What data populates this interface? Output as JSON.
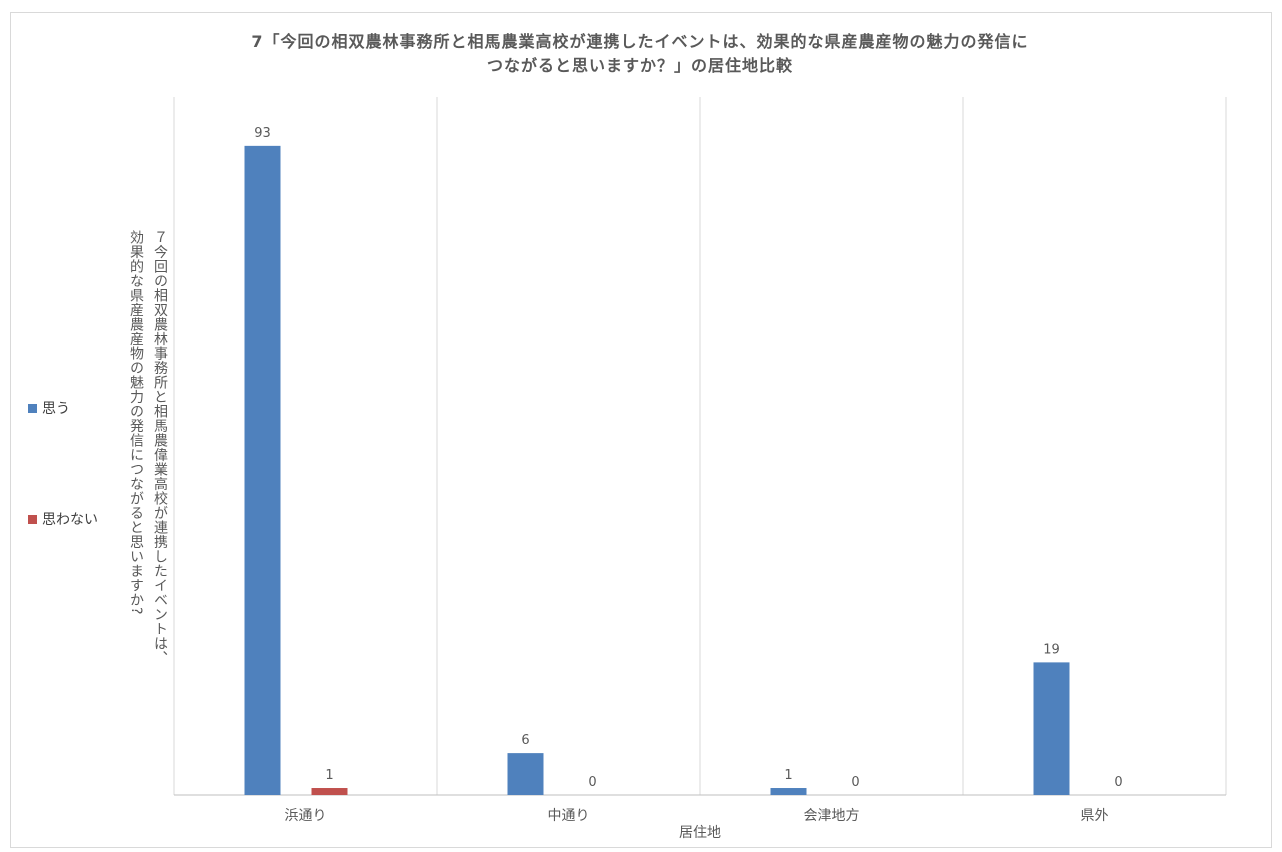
{
  "chart_data": {
    "type": "bar",
    "title_lines": [
      "7「今回の相双農林事務所と相馬農業高校が連携したイベントは、効果的な県産農産物の魅力の発信に",
      "つながると思いますか？」の居住地比較"
    ],
    "ylabel_lines": [
      "７今回の相双農林事務所と相馬農偉業高校が連携したイベントは、",
      "効果的な県産農産物の魅力の発信につながると思いますか?"
    ],
    "xlabel": "居住地",
    "categories": [
      "浜通り",
      "中通り",
      "会津地方",
      "県外"
    ],
    "series": [
      {
        "name": "思う",
        "color": "#4f81bd",
        "values": [
          93,
          6,
          1,
          19
        ]
      },
      {
        "name": "思わない",
        "color": "#c0504d",
        "values": [
          1,
          0,
          0,
          0
        ]
      }
    ],
    "ylim": [
      0,
      100
    ],
    "data_labels": true,
    "grid": "vertical category separators",
    "legend_position": "left"
  }
}
